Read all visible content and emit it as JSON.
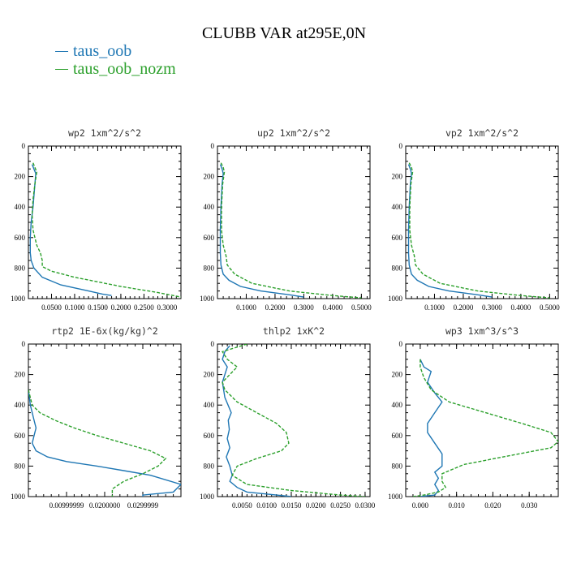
{
  "title": "CLUBB VAR at295E,0N",
  "legend": [
    {
      "label": "taus_oob",
      "color": "#1f77b4"
    },
    {
      "label": "taus_oob_nozm",
      "color": "#2ca02c"
    }
  ],
  "chart_data": [
    {
      "type": "line",
      "title": "wp2  1xm^2/s^2",
      "xlim": [
        0,
        0.33
      ],
      "ylim": [
        1000,
        0
      ],
      "yticks": [
        "0",
        "200",
        "400",
        "600",
        "800",
        "1000"
      ],
      "xticks": [
        0.05,
        0.1,
        0.15,
        0.2,
        0.25,
        0.3
      ],
      "xticklabels": [
        "0.0500",
        "0.1000",
        "0.1500",
        "0.2000",
        "0.2500",
        "0.3000"
      ],
      "series": [
        {
          "name": "taus_oob",
          "color": "#1f77b4",
          "x": [
            0.008,
            0.012,
            0.016,
            0.014,
            0.01,
            0.006,
            0.004,
            0.004,
            0.006,
            0.012,
            0.03,
            0.07,
            0.13,
            0.16,
            0.18
          ],
          "y": [
            120,
            150,
            180,
            250,
            400,
            500,
            600,
            700,
            750,
            800,
            860,
            910,
            950,
            970,
            980
          ]
        },
        {
          "name": "taus_oob_nozm",
          "color": "#2ca02c",
          "x": [
            0.01,
            0.014,
            0.018,
            0.014,
            0.01,
            0.008,
            0.01,
            0.018,
            0.026,
            0.03,
            0.03,
            0.05,
            0.1,
            0.2,
            0.28,
            0.33
          ],
          "y": [
            110,
            140,
            170,
            250,
            350,
            450,
            550,
            650,
            700,
            750,
            790,
            820,
            860,
            920,
            960,
            990
          ]
        }
      ]
    },
    {
      "type": "line",
      "title": "up2  1xm^2/s^2",
      "xlim": [
        0,
        0.53
      ],
      "ylim": [
        1000,
        0
      ],
      "yticks": [
        "0",
        "200",
        "400",
        "600",
        "800",
        "1000"
      ],
      "xticks": [
        0.1,
        0.2,
        0.3,
        0.4,
        0.5
      ],
      "xticklabels": [
        "0.1000",
        "0.2000",
        "0.3000",
        "0.4000",
        "0.5000"
      ],
      "series": [
        {
          "name": "taus_oob",
          "color": "#1f77b4",
          "x": [
            0.01,
            0.016,
            0.02,
            0.016,
            0.012,
            0.01,
            0.01,
            0.012,
            0.02,
            0.04,
            0.08,
            0.15,
            0.25,
            0.3
          ],
          "y": [
            120,
            150,
            180,
            250,
            400,
            550,
            700,
            780,
            840,
            880,
            920,
            950,
            975,
            990
          ]
        },
        {
          "name": "taus_oob_nozm",
          "color": "#2ca02c",
          "x": [
            0.012,
            0.02,
            0.024,
            0.018,
            0.014,
            0.014,
            0.02,
            0.03,
            0.034,
            0.06,
            0.12,
            0.25,
            0.4,
            0.5
          ],
          "y": [
            110,
            140,
            170,
            250,
            400,
            550,
            650,
            720,
            780,
            840,
            900,
            950,
            980,
            995
          ]
        }
      ]
    },
    {
      "type": "line",
      "title": "vp2  1xm^2/s^2",
      "xlim": [
        0,
        0.53
      ],
      "ylim": [
        1000,
        0
      ],
      "yticks": [
        "0",
        "200",
        "400",
        "600",
        "800",
        "1000"
      ],
      "xticks": [
        0.1,
        0.2,
        0.3,
        0.4,
        0.5
      ],
      "xticklabels": [
        "0.1000",
        "0.2000",
        "0.3000",
        "0.4000",
        "0.5000"
      ],
      "series": [
        {
          "name": "taus_oob",
          "color": "#1f77b4",
          "x": [
            0.01,
            0.016,
            0.02,
            0.016,
            0.012,
            0.01,
            0.01,
            0.012,
            0.02,
            0.04,
            0.08,
            0.15,
            0.25,
            0.3
          ],
          "y": [
            120,
            150,
            180,
            250,
            400,
            550,
            700,
            780,
            840,
            880,
            920,
            950,
            975,
            990
          ]
        },
        {
          "name": "taus_oob_nozm",
          "color": "#2ca02c",
          "x": [
            0.012,
            0.02,
            0.024,
            0.018,
            0.014,
            0.014,
            0.02,
            0.03,
            0.034,
            0.06,
            0.12,
            0.25,
            0.4,
            0.5
          ],
          "y": [
            110,
            140,
            170,
            250,
            400,
            550,
            650,
            720,
            780,
            840,
            900,
            950,
            980,
            995
          ]
        }
      ]
    },
    {
      "type": "line",
      "title": "rtp2  1E-6x(kg/kg)^2",
      "xlim": [
        0,
        0.04
      ],
      "ylim": [
        1000,
        0
      ],
      "yticks": [
        "0",
        "200",
        "400",
        "600",
        "800",
        "1000"
      ],
      "xticks": [
        0.01,
        0.02,
        0.03
      ],
      "xticklabels": [
        "0.00999999",
        "0.0200000",
        "0.0299999"
      ],
      "series": [
        {
          "name": "taus_oob",
          "color": "#1f77b4",
          "x": [
            0.0,
            0.0005,
            0.001,
            0.0015,
            0.002,
            0.0015,
            0.001,
            0.002,
            0.005,
            0.01,
            0.018,
            0.025,
            0.032,
            0.04,
            0.038,
            0.03,
            0.03
          ],
          "y": [
            300,
            400,
            450,
            500,
            550,
            600,
            650,
            700,
            740,
            770,
            800,
            830,
            860,
            920,
            970,
            990,
            1000
          ]
        },
        {
          "name": "taus_oob_nozm",
          "color": "#2ca02c",
          "x": [
            0.0,
            0.001,
            0.003,
            0.007,
            0.012,
            0.018,
            0.025,
            0.032,
            0.036,
            0.034,
            0.03,
            0.025,
            0.022,
            0.022
          ],
          "y": [
            300,
            400,
            450,
            500,
            550,
            600,
            650,
            700,
            750,
            800,
            850,
            900,
            950,
            1000
          ]
        }
      ]
    },
    {
      "type": "line",
      "title": "thlp2  1xK^2",
      "xlim": [
        0,
        0.031
      ],
      "ylim": [
        1000,
        0
      ],
      "yticks": [
        "0",
        "200",
        "400",
        "600",
        "800",
        "1000"
      ],
      "xticks": [
        0.005,
        0.01,
        0.015,
        0.02,
        0.025,
        0.03
      ],
      "xticklabels": [
        "0.0050",
        "0.0100",
        "0.0150",
        "0.0200",
        "0.0250",
        "0.0300"
      ],
      "series": [
        {
          "name": "taus_oob",
          "color": "#1f77b4",
          "x": [
            0.0025,
            0.0015,
            0.001,
            0.002,
            0.001,
            0.0015,
            0.0028,
            0.0022,
            0.0024,
            0.002,
            0.0025,
            0.0018,
            0.0025,
            0.003,
            0.0025,
            0.004,
            0.006,
            0.012,
            0.015
          ],
          "y": [
            10,
            50,
            100,
            150,
            250,
            350,
            450,
            500,
            560,
            620,
            680,
            740,
            800,
            860,
            900,
            940,
            970,
            990,
            1000
          ]
        },
        {
          "name": "taus_oob_nozm",
          "color": "#2ca02c",
          "x": [
            0.006,
            0.001,
            0.002,
            0.004,
            0.001,
            0.0015,
            0.004,
            0.008,
            0.012,
            0.014,
            0.0145,
            0.013,
            0.008,
            0.004,
            0.003,
            0.006,
            0.015,
            0.025,
            0.03
          ],
          "y": [
            0,
            50,
            100,
            150,
            250,
            300,
            380,
            450,
            520,
            580,
            650,
            700,
            750,
            800,
            860,
            920,
            960,
            990,
            1000
          ]
        }
      ]
    },
    {
      "type": "line",
      "title": "wp3  1xm^3/s^3",
      "xlim": [
        -0.004,
        0.038
      ],
      "ylim": [
        1000,
        0
      ],
      "yticks": [
        "0",
        "200",
        "400",
        "600",
        "800",
        "1000"
      ],
      "xticks": [
        0.0,
        0.01,
        0.02,
        0.03
      ],
      "xticklabels": [
        "0.000",
        "0.010",
        "0.020",
        "0.030"
      ],
      "series": [
        {
          "name": "taus_oob",
          "color": "#1f77b4",
          "x": [
            0.0,
            0.001,
            0.003,
            0.002,
            0.004,
            0.006,
            0.004,
            0.002,
            0.002,
            0.004,
            0.006,
            0.006,
            0.004,
            0.005,
            0.004,
            0.005,
            0.004,
            0.0
          ],
          "y": [
            100,
            150,
            180,
            250,
            320,
            380,
            450,
            520,
            580,
            650,
            720,
            800,
            840,
            880,
            920,
            960,
            990,
            1000
          ]
        },
        {
          "name": "taus_oob_nozm",
          "color": "#2ca02c",
          "x": [
            0.0,
            0.0,
            0.001,
            0.003,
            0.008,
            0.018,
            0.028,
            0.036,
            0.038,
            0.036,
            0.025,
            0.012,
            0.006,
            0.006,
            0.007,
            0.005,
            0.001,
            -0.002
          ],
          "y": [
            100,
            150,
            220,
            300,
            380,
            450,
            520,
            580,
            640,
            680,
            730,
            790,
            850,
            900,
            940,
            970,
            990,
            1000
          ]
        }
      ]
    }
  ]
}
